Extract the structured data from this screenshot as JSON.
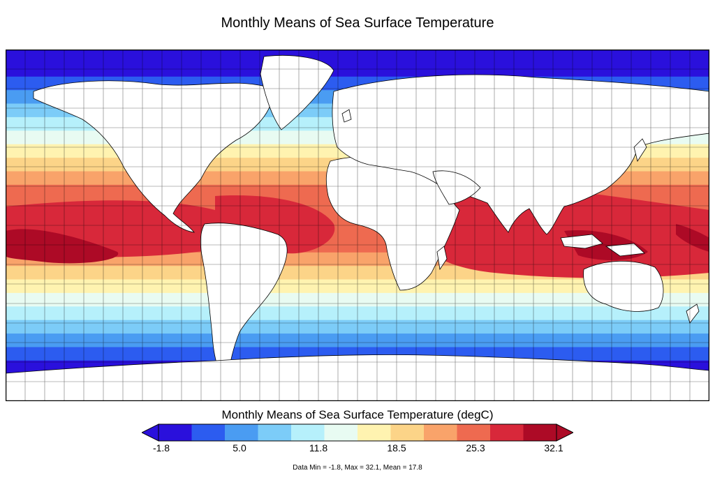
{
  "title": "Monthly Means of Sea Surface Temperature",
  "colorbar": {
    "title": "Monthly Means of Sea Surface Temperature (degC)",
    "tick_labels": [
      "-1.8",
      "5.0",
      "11.8",
      "18.5",
      "25.3",
      "32.1"
    ],
    "colors": [
      "#2a10dc",
      "#2c5cf0",
      "#4a9cf2",
      "#7cccf8",
      "#b6f0fb",
      "#e8fbf2",
      "#fff3b0",
      "#fcd488",
      "#f9a36a",
      "#ee6a50",
      "#d8283a",
      "#ad0a26"
    ],
    "extend": "both"
  },
  "map": {
    "projection": "cylindrical-equidistant",
    "grid": true,
    "land_color": "#ffffff",
    "coastline_color": "#000000"
  },
  "stats": "Data Min = -1.8, Max = 32.1, Mean = 17.8"
}
